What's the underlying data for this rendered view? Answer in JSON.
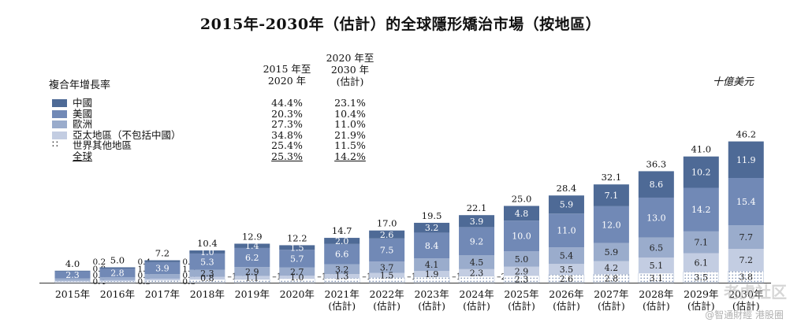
{
  "title": "2015年-2030年（估計）的全球隱形矯治市場（按地區）",
  "legend_header": {
    "cagr_label": "複合年增長率",
    "col1": [
      "2015 年至",
      "2020 年"
    ],
    "col2": [
      "2020 年至",
      "2030 年",
      "(估計)"
    ],
    "unit": "十億美元"
  },
  "legend_rows": [
    {
      "name": "中國",
      "c1": "44.4%",
      "c2": "23.1%",
      "color": "#4e6a96"
    },
    {
      "name": "美國",
      "c1": "20.3%",
      "c2": "10.4%",
      "color": "#7189b6"
    },
    {
      "name": "歐洲",
      "c1": "27.3%",
      "c2": "11.0%",
      "color": "#9aaccc"
    },
    {
      "name": "亞太地區（不包括中國）",
      "c1": "34.8%",
      "c2": "21.9%",
      "color": "#c3cde2"
    },
    {
      "name": "世界其他地區",
      "c1": "25.4%",
      "c2": "11.5%",
      "color": "dots"
    },
    {
      "name": "全球",
      "c1": "25.3%",
      "c2": "14.2%",
      "color": "total"
    }
  ],
  "watermark": "老虎社区",
  "watermark2": "@智通財經 港股圈",
  "chart_data": {
    "type": "bar",
    "stacked": true,
    "categories": [
      [
        "2015年"
      ],
      [
        "2016年"
      ],
      [
        "2017年"
      ],
      [
        "2018年"
      ],
      [
        "2019年"
      ],
      [
        "2020年"
      ],
      [
        "2021年",
        "(估計)"
      ],
      [
        "2022年",
        "(估計)"
      ],
      [
        "2023年",
        "(估計)"
      ],
      [
        "2024年",
        "(估計)"
      ],
      [
        "2025年",
        "(估計)"
      ],
      [
        "2026年",
        "(估計)"
      ],
      [
        "2027年",
        "(估計)"
      ],
      [
        "2028年",
        "(估計)"
      ],
      [
        "2029年",
        "(估計)"
      ],
      [
        "2030年",
        "(估計)"
      ]
    ],
    "series": [
      {
        "name": "世界其他地區",
        "color": "#ffffff",
        "values": [
          0.4,
          0.5,
          0.8,
          1.1,
          1.1,
          1.3,
          1.5,
          1.7,
          1.9,
          2.1,
          2.3,
          2.6,
          2.8,
          3.1,
          3.5,
          3.8
        ]
      },
      {
        "name": "亞太地區（不包括中國）",
        "color": "#c3cde2",
        "values": [
          0.2,
          0.3,
          0.5,
          0.8,
          1.1,
          1.0,
          1.3,
          1.5,
          1.9,
          2.3,
          2.9,
          3.5,
          4.2,
          5.1,
          6.1,
          7.2
        ]
      },
      {
        "name": "歐洲",
        "color": "#9aaccc",
        "values": [
          0.8,
          1.0,
          1.5,
          2.3,
          2.9,
          2.7,
          3.2,
          3.7,
          4.1,
          4.5,
          5.0,
          5.4,
          5.9,
          6.5,
          7.1,
          7.7
        ]
      },
      {
        "name": "美國",
        "color": "#7189b6",
        "values": [
          2.3,
          2.8,
          3.9,
          5.3,
          6.2,
          5.7,
          6.6,
          7.5,
          8.4,
          9.2,
          10.0,
          11.0,
          12.0,
          13.0,
          14.2,
          15.4
        ]
      },
      {
        "name": "中國",
        "color": "#4e6a96",
        "values": [
          0.2,
          0.4,
          0.6,
          1.0,
          1.4,
          1.5,
          2.0,
          2.6,
          3.2,
          3.9,
          4.8,
          5.9,
          7.1,
          8.6,
          10.2,
          11.9
        ]
      }
    ],
    "totals": [
      4.0,
      5.0,
      7.2,
      10.4,
      12.9,
      12.2,
      14.7,
      17.0,
      19.5,
      22.1,
      25.0,
      28.4,
      32.1,
      36.3,
      41.0,
      46.2
    ],
    "ylim": [
      0,
      50
    ]
  }
}
